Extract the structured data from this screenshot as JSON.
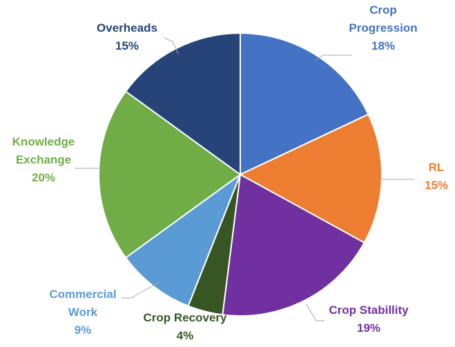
{
  "chart_data": {
    "type": "pie",
    "title": "",
    "legend": "none",
    "slices": [
      {
        "name": "Crop Progression",
        "lines": [
          "Crop",
          "Progression"
        ],
        "value": 18,
        "label": "18%",
        "color": "#4472c4"
      },
      {
        "name": "RL",
        "lines": [
          "RL"
        ],
        "value": 15,
        "label": "15%",
        "color": "#ed7d31"
      },
      {
        "name": "Crop Stabillity",
        "lines": [
          "Crop Stabillity"
        ],
        "value": 19,
        "label": "19%",
        "color": "#7030a0"
      },
      {
        "name": "Crop Recovery",
        "lines": [
          "Crop Recovery"
        ],
        "value": 4,
        "label": "4%",
        "color": "#375623"
      },
      {
        "name": "Commercial Work",
        "lines": [
          "Commercial",
          "Work"
        ],
        "value": 9,
        "label": "9%",
        "color": "#5b9bd5"
      },
      {
        "name": "Knowledge Exchange",
        "lines": [
          "Knowledge",
          "Exchange"
        ],
        "value": 20,
        "label": "20%",
        "color": "#70ad47"
      },
      {
        "name": "Overheads",
        "lines": [
          "Overheads"
        ],
        "value": 15,
        "label": "15%",
        "color": "#264478"
      }
    ]
  }
}
